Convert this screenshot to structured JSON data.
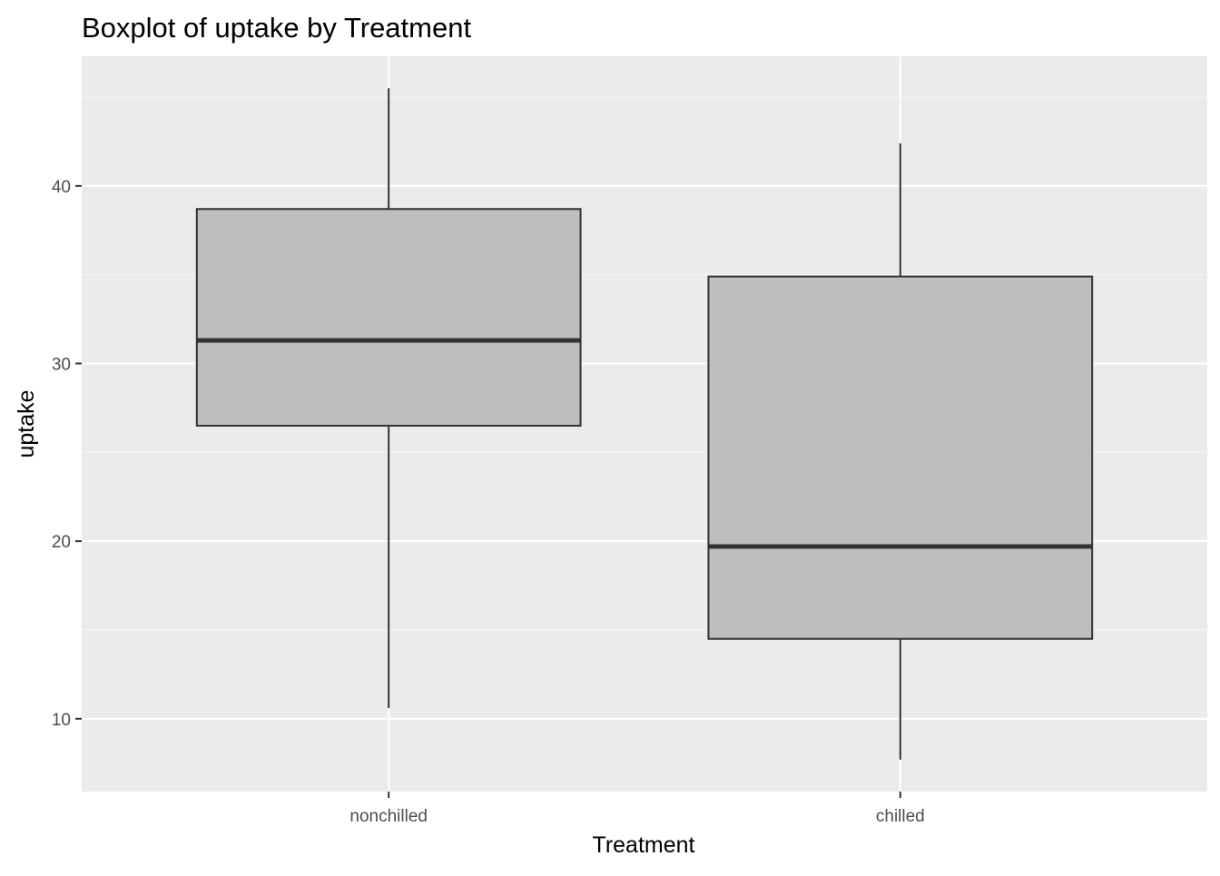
{
  "chart_data": {
    "type": "boxplot",
    "title": "Boxplot of uptake by Treatment",
    "xlabel": "Treatment",
    "ylabel": "uptake",
    "categories": [
      "nonchilled",
      "chilled"
    ],
    "boxes": [
      {
        "category": "nonchilled",
        "min": 10.6,
        "q1": 26.5,
        "median": 31.3,
        "q3": 38.7,
        "max": 45.5
      },
      {
        "category": "chilled",
        "min": 7.7,
        "q1": 14.5,
        "median": 19.7,
        "q3": 34.9,
        "max": 42.4
      }
    ],
    "y_ticks": [
      10,
      20,
      30,
      40
    ],
    "y_tick_labels": [
      "10",
      "20",
      "30",
      "40"
    ],
    "ylim": [
      5.9,
      47.3
    ],
    "grid": true,
    "legend": "none",
    "colors": {
      "panel_background": "#EBEBEB",
      "grid_major": "#FFFFFF",
      "grid_minor": "#F5F5F5",
      "box_fill": "#BEBEBE",
      "box_line": "#333333",
      "tick_mark": "#333333",
      "tick_label": "#4D4D4D",
      "title_text": "#000000"
    }
  }
}
